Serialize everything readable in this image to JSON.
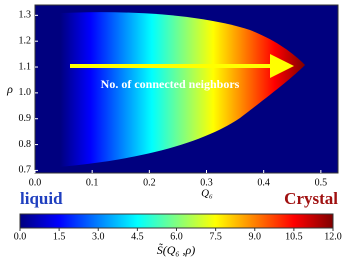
{
  "chart_data": {
    "type": "heatmap",
    "xlabel": "Q₆",
    "ylabel": "ρ",
    "xlim": [
      0,
      0.53
    ],
    "ylim": [
      0.69,
      1.34
    ],
    "xticks": [
      {
        "value": 0,
        "label": "0.0"
      },
      0.1,
      0.2,
      0.3,
      0.4,
      0.5
    ],
    "yticks": [
      0.7,
      0.8,
      0.9,
      {
        "value": 1,
        "label": "1.0"
      },
      1.1,
      1.2,
      1.3
    ],
    "annotation": "No. of connected neighbors",
    "left_label": "liquid",
    "right_label": "Crystal",
    "colormap": [
      "#00007f",
      "#0000ff",
      "#0080ff",
      "#00ffff",
      "#80ff80",
      "#ffff00",
      "#ff8000",
      "#ff0000",
      "#7f0000"
    ],
    "colorbar": {
      "label": "S̃(Q₆ ,ρ)",
      "lim": [
        0,
        12
      ],
      "ticks": [
        {
          "value": 0,
          "label": "0.0"
        },
        1.5,
        {
          "value": 3,
          "label": "3.0"
        },
        4.5,
        {
          "value": 6,
          "label": "6.0"
        },
        7.5,
        {
          "value": 9,
          "label": "9.0"
        },
        10.5,
        {
          "value": 12,
          "label": "12.0"
        }
      ]
    }
  }
}
